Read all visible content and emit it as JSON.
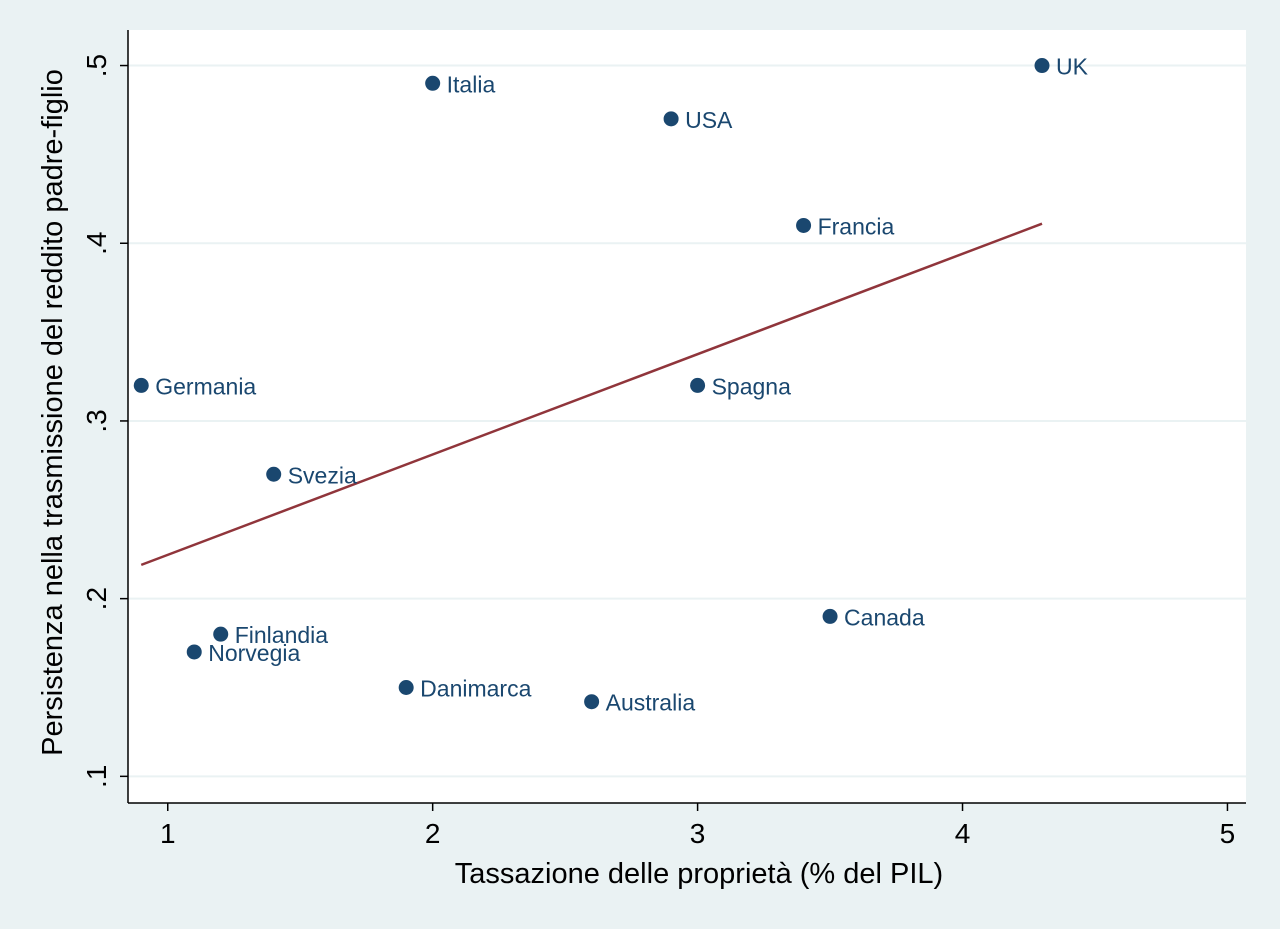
{
  "chart_data": {
    "type": "scatter",
    "title": "",
    "xlabel": "Tassazione delle proprietà (% del PIL)",
    "ylabel": "Persistenza nella trasmissione del reddito padre-figlio",
    "xlim": [
      0.85,
      5.07
    ],
    "ylim": [
      0.085,
      0.52
    ],
    "x_ticks": [
      1,
      2,
      3,
      4,
      5
    ],
    "x_tick_labels": [
      "1",
      "2",
      "3",
      "4",
      "5"
    ],
    "y_ticks": [
      0.1,
      0.2,
      0.3,
      0.4,
      0.5
    ],
    "y_tick_labels": [
      ".1",
      ".2",
      ".3",
      ".4",
      ".5"
    ],
    "grid": "horizontal",
    "points": [
      {
        "label": "Italia",
        "x": 2.0,
        "y": 0.49
      },
      {
        "label": "UK",
        "x": 4.3,
        "y": 0.5
      },
      {
        "label": "USA",
        "x": 2.9,
        "y": 0.47
      },
      {
        "label": "Francia",
        "x": 3.4,
        "y": 0.41
      },
      {
        "label": "Germania",
        "x": 0.9,
        "y": 0.32
      },
      {
        "label": "Spagna",
        "x": 3.0,
        "y": 0.32
      },
      {
        "label": "Svezia",
        "x": 1.4,
        "y": 0.27
      },
      {
        "label": "Canada",
        "x": 3.5,
        "y": 0.19
      },
      {
        "label": "Finlandia",
        "x": 1.2,
        "y": 0.18
      },
      {
        "label": "Norvegia",
        "x": 1.1,
        "y": 0.17
      },
      {
        "label": "Danimarca",
        "x": 1.9,
        "y": 0.15
      },
      {
        "label": "Australia",
        "x": 2.6,
        "y": 0.142
      }
    ],
    "fit_line": {
      "x": [
        0.9,
        4.3
      ],
      "y": [
        0.219,
        0.411
      ]
    },
    "colors": {
      "background": "#eaf2f3",
      "plot_background": "#ffffff",
      "marker": "#1a476f",
      "fit_line": "#90353b",
      "grid": "#eaf2f3"
    }
  }
}
